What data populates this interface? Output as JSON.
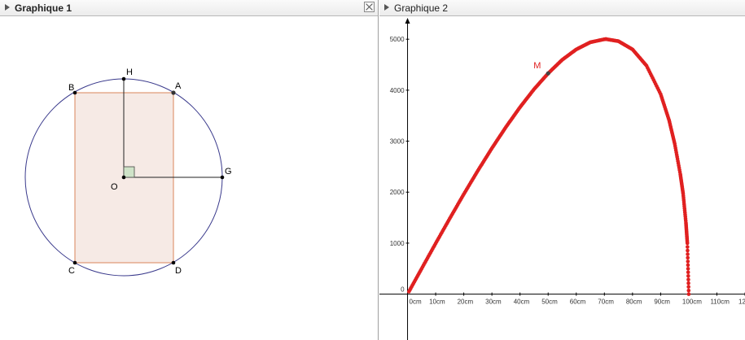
{
  "graphic1": {
    "title": "Graphique 1",
    "points": {
      "H": "H",
      "A": "A",
      "B": "B",
      "O": "O",
      "G": "G",
      "C": "C",
      "D": "D"
    }
  },
  "graphic2": {
    "title": "Graphique 2",
    "point_label": "M"
  },
  "colors": {
    "circle": "#3a3a8c",
    "rectangle_stroke": "#d9845a",
    "rectangle_fill": "#f5e6e0",
    "curve": "#e02020",
    "point_label": "#e02020",
    "right_angle_fill": "#cfe3c8"
  },
  "chart_data": {
    "type": "scatter",
    "x_unit": "cm",
    "x_ticks": [
      "0cm",
      "10cm",
      "20cm",
      "30cm",
      "40cm",
      "50cm",
      "60cm",
      "70cm",
      "80cm",
      "90cm",
      "100cm",
      "110cm",
      "12"
    ],
    "y_ticks": [
      "0",
      "1000",
      "2000",
      "3000",
      "4000",
      "5000"
    ],
    "xlim": [
      -10,
      120
    ],
    "ylim": [
      -900,
      5450
    ],
    "grid": false,
    "series": [
      {
        "x": [
          0.5,
          5,
          10,
          15,
          20,
          25,
          30,
          35,
          40,
          45,
          50,
          55,
          60,
          65,
          70,
          70.7,
          75,
          80,
          85,
          90,
          93,
          95,
          97,
          98,
          99,
          99.5,
          100
        ],
        "y": [
          50,
          499,
          995,
          1483,
          1960,
          2421,
          2862,
          3278,
          3666,
          4020,
          4330,
          4596,
          4800,
          4940,
          4999,
          5000,
          4961,
          4800,
          4479,
          3923,
          3412,
          2950,
          2352,
          1969,
          1398,
          998,
          0
        ]
      }
    ],
    "highlight_point": {
      "label": "M",
      "x": 50,
      "y": 4330
    }
  }
}
